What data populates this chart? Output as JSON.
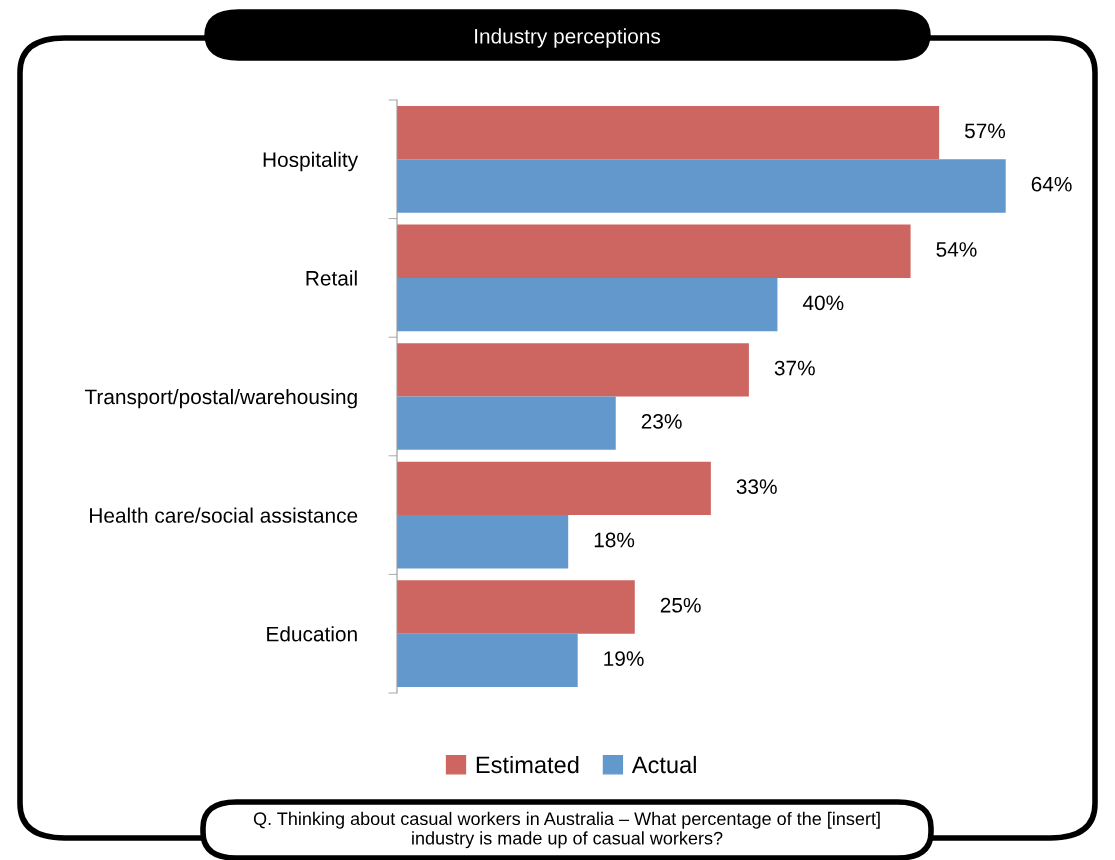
{
  "chart_data": {
    "type": "bar",
    "orientation": "horizontal",
    "title": "Industry perceptions",
    "categories": [
      "Hospitality",
      "Retail",
      "Transport/postal/warehousing",
      "Health care/social assistance",
      "Education"
    ],
    "series": [
      {
        "name": "Estimated",
        "color": "#cd6660",
        "values": [
          57,
          54,
          37,
          33,
          25
        ],
        "value_labels": [
          "57%",
          "54%",
          "37%",
          "33%",
          "25%"
        ]
      },
      {
        "name": "Actual",
        "color": "#6398cc",
        "values": [
          64,
          40,
          23,
          18,
          19
        ],
        "value_labels": [
          "64%",
          "40%",
          "23%",
          "18%",
          "19%"
        ]
      }
    ],
    "legend": "bottom",
    "grid": false,
    "tick_labels": "y",
    "annotations": [
      "Q. Thinking about casual workers in Australia – What percentage of the [insert] industry is made up of casual workers?"
    ]
  }
}
